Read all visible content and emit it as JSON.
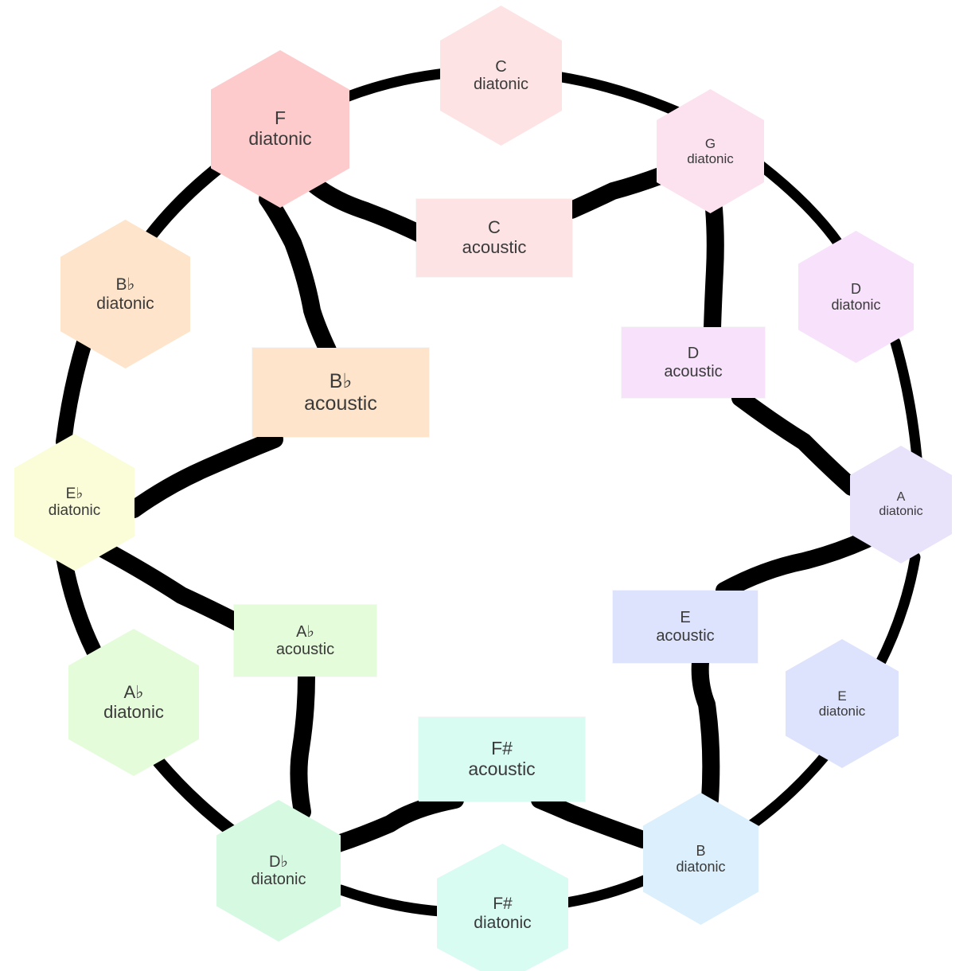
{
  "nodes": {
    "c_diatonic": {
      "note": "C",
      "kind": "diatonic",
      "color": "#fde3e3"
    },
    "g_diatonic": {
      "note": "G",
      "kind": "diatonic",
      "color": "#fce1ef"
    },
    "d_diatonic": {
      "note": "D",
      "kind": "diatonic",
      "color": "#f7e1fb"
    },
    "a_diatonic": {
      "note": "A",
      "kind": "diatonic",
      "color": "#e9e2fb"
    },
    "e_diatonic": {
      "note": "E",
      "kind": "diatonic",
      "color": "#dde2fd"
    },
    "b_diatonic": {
      "note": "B",
      "kind": "diatonic",
      "color": "#dbeffc"
    },
    "fs_diatonic": {
      "note": "F#",
      "kind": "diatonic",
      "color": "#d8fbf2"
    },
    "db_diatonic": {
      "note": "D♭",
      "kind": "diatonic",
      "color": "#d6f9e1"
    },
    "ab_diatonic": {
      "note": "A♭",
      "kind": "diatonic",
      "color": "#e4fcda"
    },
    "eb_diatonic": {
      "note": "E♭",
      "kind": "diatonic",
      "color": "#fafdd8"
    },
    "bb_diatonic": {
      "note": "B♭",
      "kind": "diatonic",
      "color": "#fde4ca"
    },
    "f_diatonic": {
      "note": "F",
      "kind": "diatonic",
      "color": "#fdcbcc"
    },
    "c_acoustic": {
      "note": "C",
      "kind": "acoustic",
      "color": "#fde3e3"
    },
    "d_acoustic": {
      "note": "D",
      "kind": "acoustic",
      "color": "#f7e1fb"
    },
    "e_acoustic": {
      "note": "E",
      "kind": "acoustic",
      "color": "#dde2fd"
    },
    "fs_acoustic": {
      "note": "F#",
      "kind": "acoustic",
      "color": "#d8fbf2"
    },
    "ab_acoustic": {
      "note": "A♭",
      "kind": "acoustic",
      "color": "#e4fcda"
    },
    "bb_acoustic": {
      "note": "B♭",
      "kind": "acoustic",
      "color": "#fde4ca"
    }
  },
  "edges": [
    [
      "f_diatonic",
      "c_diatonic"
    ],
    [
      "c_diatonic",
      "g_diatonic"
    ],
    [
      "g_diatonic",
      "d_diatonic"
    ],
    [
      "d_diatonic",
      "a_diatonic"
    ],
    [
      "a_diatonic",
      "e_diatonic"
    ],
    [
      "e_diatonic",
      "b_diatonic"
    ],
    [
      "b_diatonic",
      "fs_diatonic"
    ],
    [
      "fs_diatonic",
      "db_diatonic"
    ],
    [
      "db_diatonic",
      "ab_diatonic"
    ],
    [
      "ab_diatonic",
      "eb_diatonic"
    ],
    [
      "eb_diatonic",
      "bb_diatonic"
    ],
    [
      "bb_diatonic",
      "f_diatonic"
    ],
    [
      "f_diatonic",
      "c_acoustic"
    ],
    [
      "g_diatonic",
      "c_acoustic"
    ],
    [
      "g_diatonic",
      "d_acoustic"
    ],
    [
      "d_acoustic",
      "a_diatonic"
    ],
    [
      "a_diatonic",
      "e_acoustic"
    ],
    [
      "e_acoustic",
      "b_diatonic"
    ],
    [
      "b_diatonic",
      "fs_acoustic"
    ],
    [
      "fs_acoustic",
      "db_diatonic"
    ],
    [
      "db_diatonic",
      "ab_acoustic"
    ],
    [
      "ab_acoustic",
      "eb_diatonic"
    ],
    [
      "eb_diatonic",
      "bb_acoustic"
    ],
    [
      "bb_acoustic",
      "f_diatonic"
    ]
  ]
}
